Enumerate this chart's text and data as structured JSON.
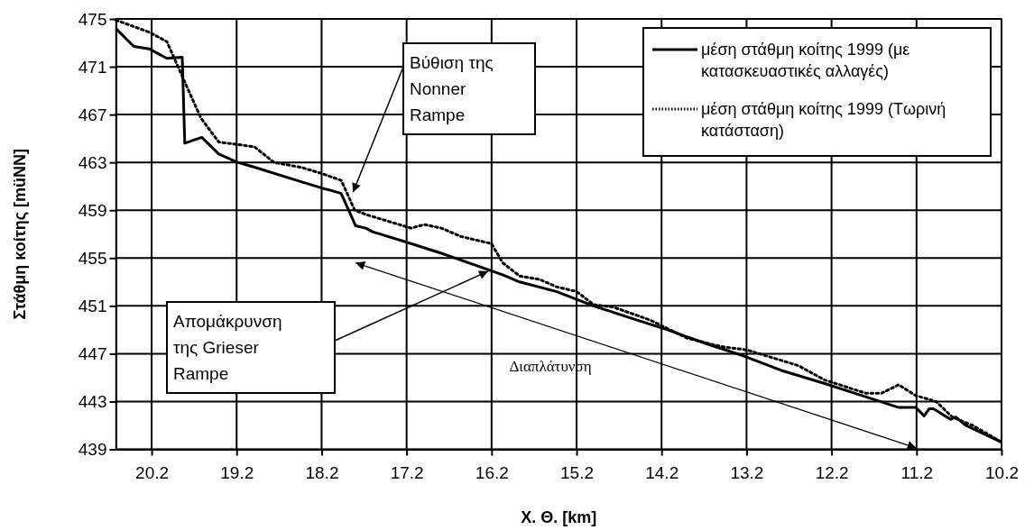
{
  "chart_data": {
    "type": "line",
    "xlabel": "Χ. Θ. [km]",
    "ylabel": "Στάθμη κοίτης [müNN]",
    "xlim": [
      20.62,
      10.2
    ],
    "xticks": [
      20.2,
      19.2,
      18.2,
      17.2,
      16.2,
      15.2,
      14.2,
      13.2,
      12.2,
      11.2,
      10.2
    ],
    "ylim": [
      439,
      475
    ],
    "yticks": [
      439,
      443,
      447,
      451,
      455,
      459,
      463,
      467,
      471,
      475
    ],
    "grid": true,
    "legend": "top right",
    "series": [
      {
        "name": "μέση στάθμη κοίτης 1999 (με κατασκευαστικές αλλαγές)",
        "color": "#000000",
        "line_style": "solid",
        "x": [
          20.62,
          20.41,
          20.23,
          20.02,
          19.84,
          19.81,
          19.61,
          19.41,
          19.19,
          18.99,
          18.45,
          18.17,
          18.11,
          17.97,
          17.8,
          17.68,
          17.6,
          17.19,
          16.79,
          16.31,
          16.07,
          15.87,
          15.44,
          15.0,
          14.57,
          14.13,
          13.66,
          13.23,
          12.79,
          12.28,
          11.8,
          11.41,
          11.21,
          11.11,
          11.05,
          11.0,
          10.8,
          10.74,
          10.62,
          10.2
        ],
        "values": [
          474.2,
          472.7,
          472.5,
          471.7,
          471.8,
          464.6,
          465.1,
          463.7,
          463.0,
          462.6,
          461.4,
          460.8,
          460.7,
          460.4,
          457.7,
          457.5,
          457.2,
          456.3,
          455.4,
          454.2,
          453.6,
          453.0,
          452.2,
          451.0,
          450.0,
          449.0,
          447.8,
          446.8,
          445.6,
          444.5,
          443.4,
          442.5,
          442.5,
          441.8,
          442.4,
          442.4,
          441.5,
          441.7,
          441.0,
          439.6
        ]
      },
      {
        "name": "μέση στάθμη κοίτης 1999 (Τωρινή κατάσταση)",
        "color": "#000000",
        "line_style": "dotted",
        "x": [
          20.62,
          20.23,
          20.02,
          19.84,
          19.62,
          19.41,
          19.19,
          18.99,
          18.76,
          18.45,
          18.21,
          17.97,
          17.81,
          17.66,
          17.15,
          16.99,
          16.79,
          16.56,
          16.2,
          16.07,
          15.87,
          15.63,
          15.44,
          15.2,
          15.0,
          14.77,
          14.33,
          13.9,
          13.5,
          13.19,
          12.59,
          12.28,
          11.8,
          11.61,
          11.41,
          11.21,
          10.97,
          10.78,
          10.54,
          10.2
        ],
        "values": [
          474.9,
          473.9,
          473.1,
          470.2,
          466.7,
          464.7,
          464.5,
          464.3,
          463.0,
          462.6,
          462.1,
          461.5,
          459.0,
          458.6,
          457.5,
          457.8,
          457.5,
          456.8,
          456.2,
          454.6,
          453.5,
          453.2,
          452.6,
          452.2,
          451.1,
          450.9,
          449.8,
          448.3,
          447.6,
          447.3,
          446.0,
          444.8,
          443.7,
          443.7,
          444.4,
          443.5,
          443.0,
          441.7,
          441.0,
          439.6
        ]
      }
    ],
    "annotations": [
      "Βύθιση της Nonner Rampe",
      "Απομάκρυνση της Grieser Rampe",
      "Διαπλάτυνση"
    ]
  }
}
